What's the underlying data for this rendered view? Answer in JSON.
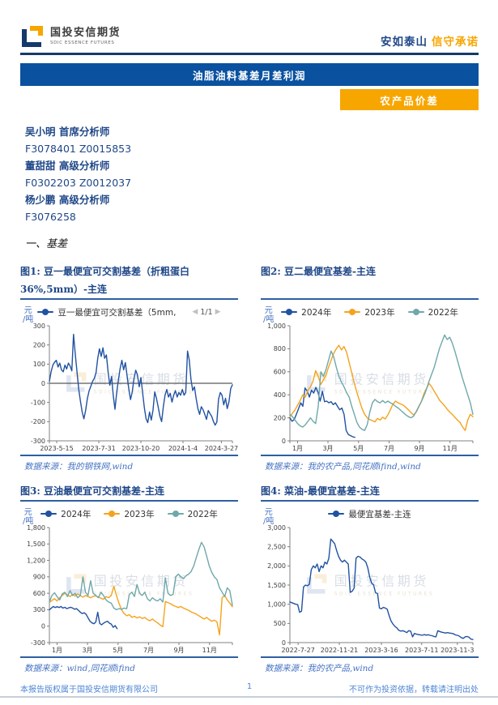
{
  "colors": {
    "navy": "#1F4788",
    "banner_blue": "#0A51A0",
    "orange": "#F7A600",
    "line_blue": "#2152A2",
    "line_orange": "#F5A31C",
    "line_teal": "#6FA8AA",
    "source_blue": "#4472C4"
  },
  "header": {
    "brand_cn": "国投安信期货",
    "brand_en": "SDIC ESSENCE FUTURES",
    "slogan_blue": "安如泰山",
    "slogan_orange": "信守承诺"
  },
  "banner": {
    "title": "油脂油料基差月差利润"
  },
  "badge": {
    "label": "农产品价差"
  },
  "analysts": [
    {
      "name": "吴小明",
      "title": "首席分析师",
      "codes": "F3078401 Z0015853"
    },
    {
      "name": "董甜甜",
      "title": "高级分析师",
      "codes": "F0302203 Z0012037"
    },
    {
      "name": "杨少鹏",
      "title": "高级分析师",
      "codes": "F3076258"
    }
  ],
  "section": {
    "title": "一、基差"
  },
  "watermark": {
    "cn": "国投安信期货",
    "en": "SDIC ESSENCE FUTURES"
  },
  "figures": [
    {
      "title": "图1: 豆一最便宜可交割基差（折粗蛋白36%,5mm）-主连",
      "source": "数据来源：我的钢铁网,wind"
    },
    {
      "title": "图2: 豆二最便宜基差-主连",
      "source": "数据来源：我的农产品,同花顺ifind,wind"
    },
    {
      "title": "图3: 豆油最便宜可交割基差-主连",
      "source": "数据来源：wind,同花顺ifind"
    },
    {
      "title": "图4: 菜油-最便宜基差-主连",
      "source": "数据来源：我的农产品,wind"
    }
  ],
  "footer": {
    "left": "本报告版权属于国投安信期货有限公司",
    "page": "1",
    "right": "不可作为投资依据，转载请注明出处"
  },
  "chart_data": [
    {
      "type": "line",
      "title": "豆一最便宜可交割基差（折粗蛋白36%,5mm）-主连",
      "unit": "元\n/吨",
      "ylim": [
        -300,
        300
      ],
      "ytick_values": [
        300,
        200,
        100,
        0,
        -100,
        -200,
        -300
      ],
      "ytick_labels": [
        "300",
        "200",
        "100",
        "0",
        "-100",
        "-200",
        "-300"
      ],
      "xlabels": [
        "2023-5-15",
        "2023-7-31",
        "2023-10-20",
        "2024-1-4",
        "2024-3-27"
      ],
      "xlabel_pos": [
        0.04,
        0.27,
        0.5,
        0.73,
        0.94
      ],
      "zero_line": true,
      "pagination": {
        "prev_icon": "◀",
        "label": "1/1",
        "next_icon": "▶"
      },
      "series": [
        {
          "name": "豆一最便宜可交割基差（5mm,",
          "color": "#2152A2",
          "span": [
            0,
            1
          ],
          "values": [
            10,
            60,
            95,
            110,
            120,
            85,
            105,
            70,
            60,
            95,
            75,
            105,
            90,
            65,
            255,
            150,
            60,
            -30,
            -95,
            -150,
            -185,
            -140,
            -80,
            -40,
            -15,
            10,
            25,
            55,
            130,
            180,
            140,
            185,
            130,
            148,
            60,
            -10,
            35,
            -65,
            -135,
            -45,
            20,
            78,
            120,
            70,
            108,
            40,
            -30,
            -85,
            -45,
            25,
            68,
            45,
            -18,
            30,
            -48,
            -128,
            -185,
            -205,
            -150,
            -192,
            -142,
            -45,
            -78,
            -122,
            -172,
            -200,
            -122,
            -62,
            -32,
            -72,
            -52,
            -98,
            -62,
            -38,
            -72,
            -48,
            -62,
            -32,
            -62,
            -48,
            168,
            122,
            22,
            -38,
            -18,
            -78,
            -132,
            -162,
            -122,
            -138,
            -162,
            -188,
            -142,
            -158,
            -172,
            -198,
            -218,
            -202,
            -82,
            -48,
            -62,
            -112,
            -78,
            -132,
            -98,
            -28,
            -8
          ]
        }
      ]
    },
    {
      "type": "line",
      "title": "豆二最便宜基差-主连",
      "unit": "元\n/吨",
      "ylim": [
        0,
        1000
      ],
      "ytick_values": [
        1000,
        800,
        600,
        400,
        200,
        0
      ],
      "ytick_labels": [
        "1,000",
        "800",
        "600",
        "400",
        "200",
        "0"
      ],
      "xlabels": [
        "1月",
        "3月",
        "5月",
        "7月",
        "9月",
        "11月"
      ],
      "xlabel_pos": [
        0.042,
        0.208,
        0.375,
        0.542,
        0.708,
        0.875
      ],
      "zero_line": false,
      "series": [
        {
          "name": "2024年",
          "color": "#2152A2",
          "span": [
            0,
            0.355
          ],
          "values": [
            200,
            170,
            185,
            230,
            280,
            330,
            300,
            460,
            430,
            380,
            440,
            415,
            465,
            420,
            345,
            430,
            340,
            345,
            330,
            340,
            315,
            330,
            300,
            270,
            285,
            230,
            90,
            55,
            45,
            35,
            30
          ]
        },
        {
          "name": "2023年",
          "color": "#F5A31C",
          "span": [
            0,
            1
          ],
          "values": [
            210,
            240,
            270,
            310,
            350,
            400,
            380,
            440,
            470,
            520,
            610,
            560,
            490,
            530,
            570,
            640,
            700,
            760,
            800,
            830,
            790,
            820,
            770,
            680,
            590,
            500,
            420,
            350,
            280,
            230,
            200,
            185,
            175,
            165,
            195,
            180,
            205,
            190,
            225,
            270,
            320,
            345,
            330,
            320,
            310,
            290,
            270,
            245,
            225,
            250,
            295,
            340,
            410,
            455,
            500,
            470,
            430,
            395,
            355,
            330,
            305,
            275,
            250,
            230,
            205,
            180,
            160,
            120,
            90,
            180,
            230,
            210
          ]
        },
        {
          "name": "2022年",
          "color": "#6FA8AA",
          "span": [
            0,
            1
          ],
          "values": [
            230,
            210,
            180,
            150,
            130,
            120,
            140,
            170,
            200,
            170,
            150,
            300,
            600,
            560,
            620,
            700,
            780,
            730,
            640,
            560,
            510,
            470,
            420,
            380,
            300,
            230,
            160,
            120,
            100,
            90,
            140,
            250,
            330,
            360,
            340,
            330,
            350,
            330,
            345,
            330,
            320,
            300,
            285,
            265,
            245,
            225,
            210,
            200,
            215,
            255,
            300,
            340,
            390,
            450,
            520,
            580,
            640,
            720,
            800,
            860,
            920,
            880,
            900,
            850,
            780,
            700,
            620,
            540,
            470,
            400,
            330,
            230
          ]
        }
      ]
    },
    {
      "type": "line",
      "title": "豆油最便宜可交割基差-主连",
      "unit": "元\n/吨",
      "ylim": [
        -300,
        1800
      ],
      "ytick_values": [
        1800,
        1500,
        1200,
        900,
        600,
        300,
        0,
        -300
      ],
      "ytick_labels": [
        "1,800",
        "1,500",
        "1,200",
        "900",
        "600",
        "300",
        "0",
        "-300"
      ],
      "xlabels": [
        "1月",
        "3月",
        "5月",
        "7月",
        "9月",
        "11月"
      ],
      "xlabel_pos": [
        0.042,
        0.208,
        0.375,
        0.542,
        0.708,
        0.875
      ],
      "zero_line": false,
      "series": [
        {
          "name": "2024年",
          "color": "#2152A2",
          "span": [
            0,
            0.37
          ],
          "values": [
            300,
            330,
            360,
            340,
            355,
            340,
            360,
            330,
            345,
            320,
            335,
            345,
            330,
            310,
            320,
            290,
            255,
            230,
            245,
            215,
            150,
            90,
            60,
            45,
            75,
            255,
            50,
            25,
            55,
            75,
            90,
            55,
            35,
            -20,
            10,
            -45
          ]
        },
        {
          "name": "2023年",
          "color": "#F5A31C",
          "span": [
            0,
            1
          ],
          "values": [
            430,
            470,
            500,
            460,
            520,
            560,
            600,
            570,
            540,
            580,
            550,
            590,
            560,
            530,
            560,
            540,
            520,
            545,
            555,
            530,
            510,
            490,
            540,
            520,
            560,
            730,
            560,
            420,
            300,
            230,
            190,
            210,
            160,
            180,
            150,
            170,
            140,
            160,
            120,
            100,
            130,
            90,
            60,
            20,
            -10,
            450,
            430,
            410,
            380,
            360,
            340,
            360,
            330,
            310,
            290,
            260,
            240,
            220,
            190,
            160,
            130,
            160,
            120,
            90,
            110,
            80,
            -160,
            520,
            560,
            480,
            420,
            355
          ]
        },
        {
          "name": "2022年",
          "color": "#6FA8AA",
          "span": [
            0,
            1
          ],
          "values": [
            440,
            560,
            610,
            540,
            480,
            590,
            620,
            540,
            650,
            560,
            600,
            520,
            560,
            900,
            620,
            560,
            830,
            600,
            560,
            520,
            620,
            560,
            480,
            440,
            420,
            330,
            300,
            320,
            310,
            330,
            320,
            580,
            620,
            540,
            760,
            600,
            560,
            620,
            500,
            460,
            520,
            480,
            460,
            500,
            440,
            880,
            600,
            560,
            580,
            900,
            950,
            900,
            870,
            920,
            950,
            1000,
            1100,
            1250,
            1400,
            1530,
            1450,
            1280,
            1100,
            980,
            900,
            850,
            700,
            620,
            540,
            700,
            650,
            380
          ]
        }
      ]
    },
    {
      "type": "line",
      "title": "菜油-最便宜基差-主连",
      "unit": "元\n/吨",
      "ylim": [
        0,
        3000
      ],
      "ytick_values": [
        3000,
        2500,
        2000,
        1500,
        1000,
        500,
        0
      ],
      "ytick_labels": [
        "3,000",
        "2,500",
        "2,000",
        "1,500",
        "1,000",
        "500",
        "0"
      ],
      "xlabels": [
        "2022-7-27",
        "2022-11-21",
        "2023-3-16",
        "2023-7-11",
        "2023-11-3"
      ],
      "xlabel_pos": [
        0.045,
        0.27,
        0.5,
        0.72,
        0.915
      ],
      "zero_line": false,
      "series": [
        {
          "name": "最便宜基差-主连",
          "color": "#2152A2",
          "span": [
            0,
            1
          ],
          "values": [
            1060,
            1040,
            1020,
            1000,
            990,
            790,
            820,
            1450,
            1500,
            1480,
            1520,
            1900,
            2000,
            1950,
            2050,
            1850,
            2000,
            1950,
            2100,
            2050,
            2200,
            2700,
            2640,
            2580,
            2400,
            2250,
            2150,
            2100,
            2150,
            2100,
            2050,
            1310,
            1340,
            1420,
            2200,
            2250,
            2230,
            2180,
            2150,
            2100,
            1950,
            1700,
            1550,
            1500,
            1300,
            1280,
            900,
            880,
            920,
            900,
            870,
            700,
            560,
            480,
            420,
            380,
            320,
            300,
            310,
            290,
            260,
            310,
            300,
            150,
            240,
            220,
            210,
            200,
            190,
            210,
            195,
            205,
            190,
            180,
            160,
            150,
            310,
            290,
            270,
            260,
            250,
            260,
            250,
            240,
            230,
            200,
            190,
            170,
            130,
            110,
            150,
            160,
            140,
            90,
            80
          ]
        }
      ]
    }
  ]
}
